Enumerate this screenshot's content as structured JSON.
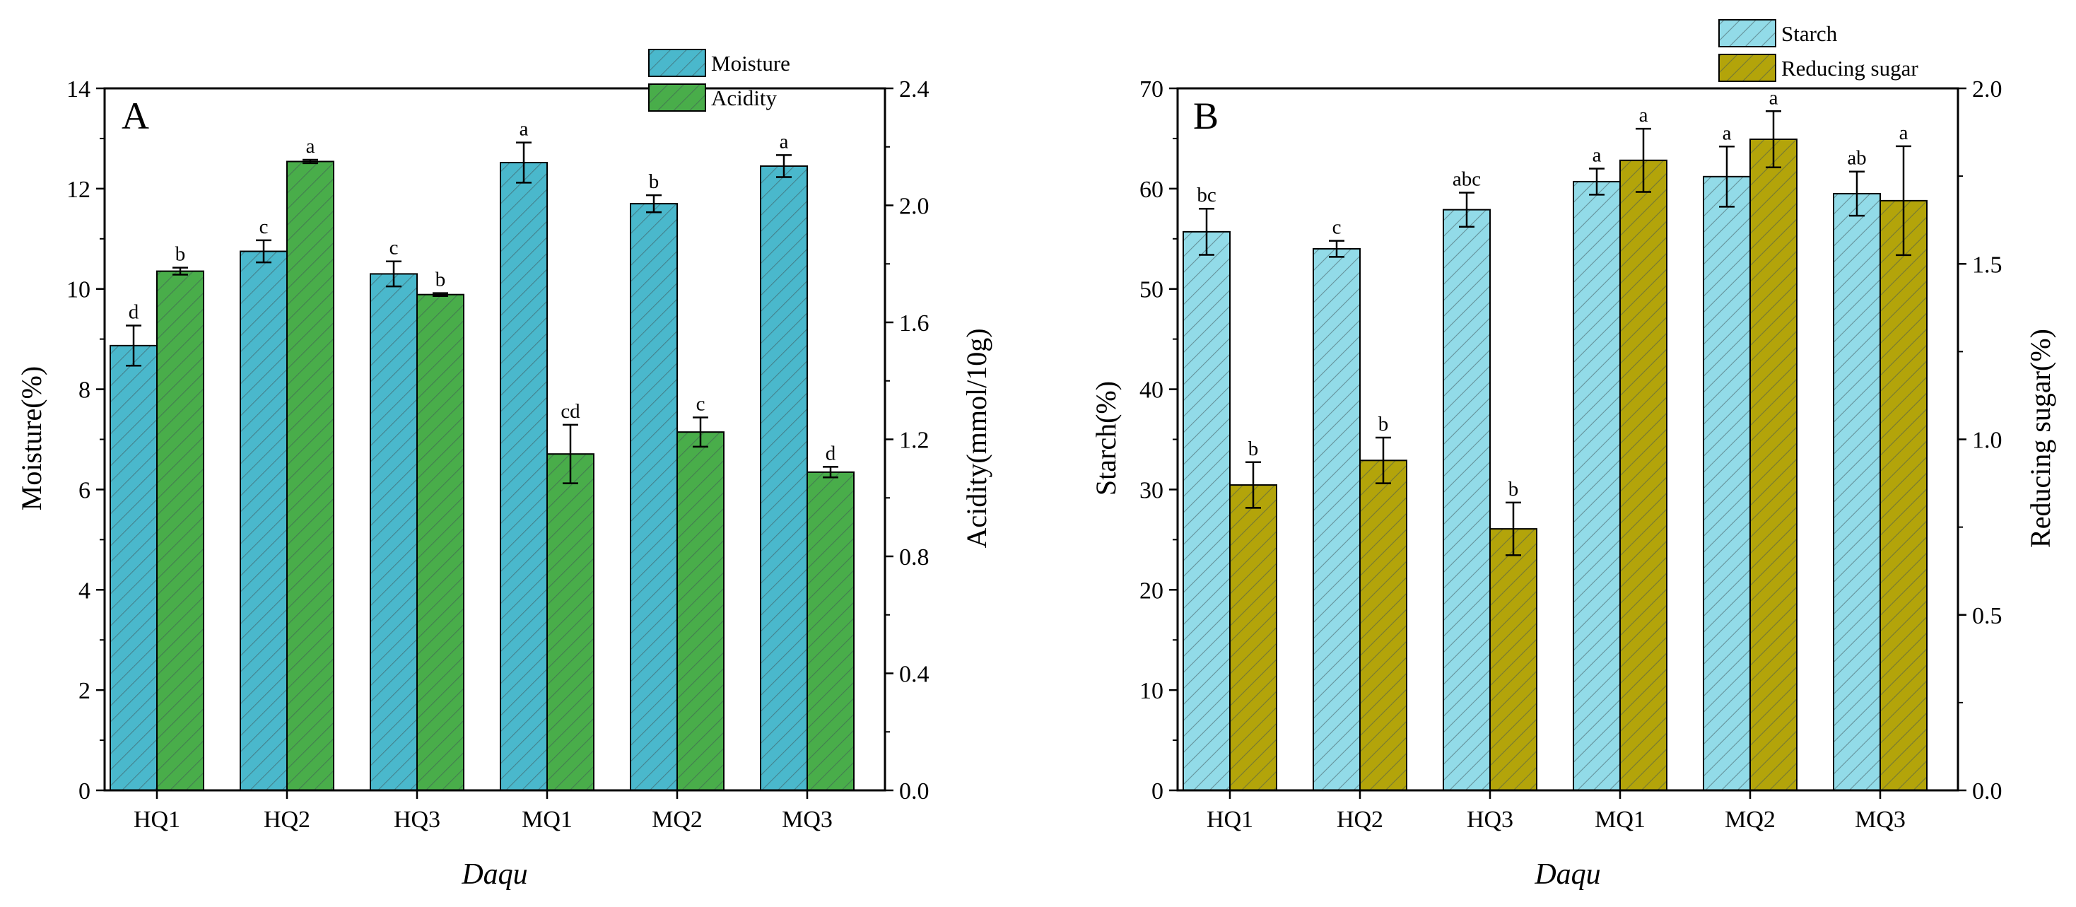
{
  "chart_data": [
    {
      "type": "bar",
      "panel_label": "A",
      "categories": [
        "HQ1",
        "HQ2",
        "HQ3",
        "MQ1",
        "MQ2",
        "MQ3"
      ],
      "xlabel": "Daqu",
      "series": [
        {
          "name": "Moisture",
          "axis": "left",
          "color": "#4ab8cc",
          "pattern": "diagonal-hatch",
          "values": [
            8.87,
            10.75,
            10.3,
            12.52,
            11.7,
            12.45
          ],
          "errors": [
            0.4,
            0.22,
            0.25,
            0.4,
            0.17,
            0.22
          ],
          "significance": [
            "d",
            "c",
            "c",
            "a",
            "b",
            "a"
          ]
        },
        {
          "name": "Acidity",
          "axis": "right",
          "color": "#49ad4a",
          "pattern": "diagonal-hatch",
          "values": [
            1.775,
            2.15,
            1.695,
            1.15,
            1.225,
            1.088
          ],
          "errors": [
            0.012,
            0.006,
            0.005,
            0.1,
            0.05,
            0.018
          ],
          "significance": [
            "b",
            "a",
            "b",
            "cd",
            "c",
            "d"
          ]
        }
      ],
      "ylabel_left": "Moisture(%)",
      "ylim_left": [
        0,
        14
      ],
      "yticks_left": [
        "0",
        "2",
        "4",
        "6",
        "8",
        "10",
        "12",
        "14"
      ],
      "ylabel_right": "Acidity(mmol/10g)",
      "ylim_right": [
        0,
        2.4
      ],
      "yticks_right": [
        "0.0",
        "0.4",
        "0.8",
        "1.2",
        "1.6",
        "2.0",
        "2.4"
      ],
      "legend_position": "top-right"
    },
    {
      "type": "bar",
      "panel_label": "B",
      "categories": [
        "HQ1",
        "HQ2",
        "HQ3",
        "MQ1",
        "MQ2",
        "MQ3"
      ],
      "xlabel": "Daqu",
      "series": [
        {
          "name": "Starch",
          "axis": "left",
          "color": "#92dbe8",
          "pattern": "diagonal-hatch",
          "values": [
            55.7,
            54.0,
            57.9,
            60.7,
            61.2,
            59.5
          ],
          "errors": [
            2.3,
            0.8,
            1.7,
            1.3,
            3.0,
            2.2
          ],
          "significance": [
            "bc",
            "c",
            "abc",
            "a",
            "a",
            "ab"
          ]
        },
        {
          "name": "Reducing sugar",
          "axis": "right",
          "color": "#b3a40a",
          "pattern": "diagonal-hatch",
          "values": [
            0.87,
            0.94,
            0.745,
            1.795,
            1.855,
            1.68
          ],
          "errors": [
            0.065,
            0.065,
            0.075,
            0.09,
            0.08,
            0.155
          ],
          "significance": [
            "b",
            "b",
            "b",
            "a",
            "a",
            "a"
          ]
        }
      ],
      "ylabel_left": "Starch(%)",
      "ylim_left": [
        0,
        70
      ],
      "yticks_left": [
        "0",
        "10",
        "20",
        "30",
        "40",
        "50",
        "60",
        "70"
      ],
      "ylabel_right": "Reducing sugar(%)",
      "ylim_right": [
        0,
        2.0
      ],
      "yticks_right": [
        "0.0",
        "0.5",
        "1.0",
        "1.5",
        "2.0"
      ],
      "legend_position": "top-right (above plot)"
    }
  ]
}
